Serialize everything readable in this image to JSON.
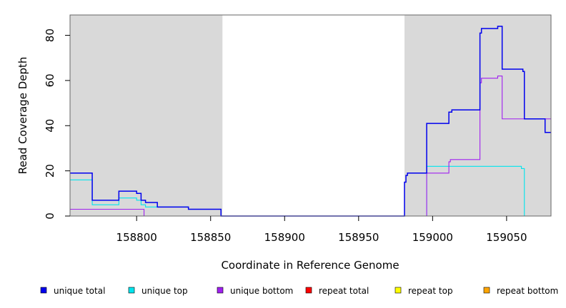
{
  "chart_data": {
    "type": "line",
    "title": "",
    "xlabel": "Coordinate in Reference Genome",
    "ylabel": "Read Coverage Depth",
    "xlim": [
      158755,
      159080
    ],
    "ylim": [
      0,
      89
    ],
    "x_ticks": [
      158800,
      158850,
      158900,
      158950,
      159000,
      159050
    ],
    "y_ticks": [
      0,
      20,
      40,
      60,
      80
    ],
    "grid": false,
    "legend_position": "bottom",
    "shaded_regions": [
      {
        "x_start": 158755,
        "x_end": 158858,
        "color": "#d9d9d9"
      },
      {
        "x_start": 158981,
        "x_end": 159080,
        "color": "#d9d9d9"
      }
    ],
    "series": [
      {
        "name": "unique total",
        "color": "#0000ee",
        "points": [
          [
            158755,
            19
          ],
          [
            158770,
            19
          ],
          [
            158770,
            7
          ],
          [
            158788,
            7
          ],
          [
            158788,
            11
          ],
          [
            158800,
            11
          ],
          [
            158800,
            10
          ],
          [
            158803,
            10
          ],
          [
            158803,
            7
          ],
          [
            158806,
            7
          ],
          [
            158806,
            6
          ],
          [
            158814,
            6
          ],
          [
            158814,
            4
          ],
          [
            158835,
            4
          ],
          [
            158835,
            3
          ],
          [
            158857,
            3
          ],
          [
            158857,
            0
          ],
          [
            158981,
            0
          ],
          [
            158981,
            15
          ],
          [
            158982,
            15
          ],
          [
            158982,
            18
          ],
          [
            158983,
            18
          ],
          [
            158983,
            19
          ],
          [
            158996,
            19
          ],
          [
            158996,
            41
          ],
          [
            159011,
            41
          ],
          [
            159011,
            46
          ],
          [
            159013,
            46
          ],
          [
            159013,
            47
          ],
          [
            159032,
            47
          ],
          [
            159032,
            81
          ],
          [
            159033,
            81
          ],
          [
            159033,
            83
          ],
          [
            159044,
            83
          ],
          [
            159044,
            84
          ],
          [
            159047,
            84
          ],
          [
            159047,
            65
          ],
          [
            159061,
            65
          ],
          [
            159061,
            64
          ],
          [
            159062,
            64
          ],
          [
            159062,
            43
          ],
          [
            159076,
            43
          ],
          [
            159076,
            37
          ],
          [
            159080,
            37
          ]
        ]
      },
      {
        "name": "unique top",
        "color": "#00e5ee",
        "points": [
          [
            158755,
            16
          ],
          [
            158770,
            16
          ],
          [
            158770,
            5
          ],
          [
            158788,
            5
          ],
          [
            158788,
            8
          ],
          [
            158800,
            8
          ],
          [
            158800,
            7
          ],
          [
            158803,
            7
          ],
          [
            158803,
            5
          ],
          [
            158806,
            5
          ],
          [
            158806,
            4
          ],
          [
            158814,
            4
          ],
          [
            158814,
            4
          ],
          [
            158835,
            4
          ],
          [
            158835,
            3
          ],
          [
            158857,
            3
          ],
          [
            158857,
            0
          ],
          [
            158996,
            0
          ],
          [
            158996,
            22
          ],
          [
            159060,
            22
          ],
          [
            159060,
            21
          ],
          [
            159062,
            21
          ],
          [
            159062,
            0
          ],
          [
            159080,
            0
          ]
        ]
      },
      {
        "name": "unique bottom",
        "color": "#a020f0",
        "points": [
          [
            158755,
            3
          ],
          [
            158805,
            3
          ],
          [
            158805,
            0
          ],
          [
            158996,
            0
          ],
          [
            158996,
            19
          ],
          [
            159011,
            19
          ],
          [
            159011,
            24
          ],
          [
            159012,
            24
          ],
          [
            159012,
            25
          ],
          [
            159032,
            25
          ],
          [
            159032,
            59
          ],
          [
            159033,
            59
          ],
          [
            159033,
            61
          ],
          [
            159044,
            61
          ],
          [
            159044,
            62
          ],
          [
            159047,
            62
          ],
          [
            159047,
            43
          ],
          [
            159080,
            43
          ]
        ]
      },
      {
        "name": "repeat total",
        "color": "#ff0000",
        "points": [
          [
            158755,
            0
          ],
          [
            159080,
            0
          ]
        ]
      },
      {
        "name": "repeat top",
        "color": "#ffff00",
        "points": [
          [
            158755,
            0
          ],
          [
            159080,
            0
          ]
        ]
      },
      {
        "name": "repeat bottom",
        "color": "#ffa500",
        "points": [
          [
            158755,
            0
          ],
          [
            159080,
            0
          ]
        ]
      }
    ]
  }
}
